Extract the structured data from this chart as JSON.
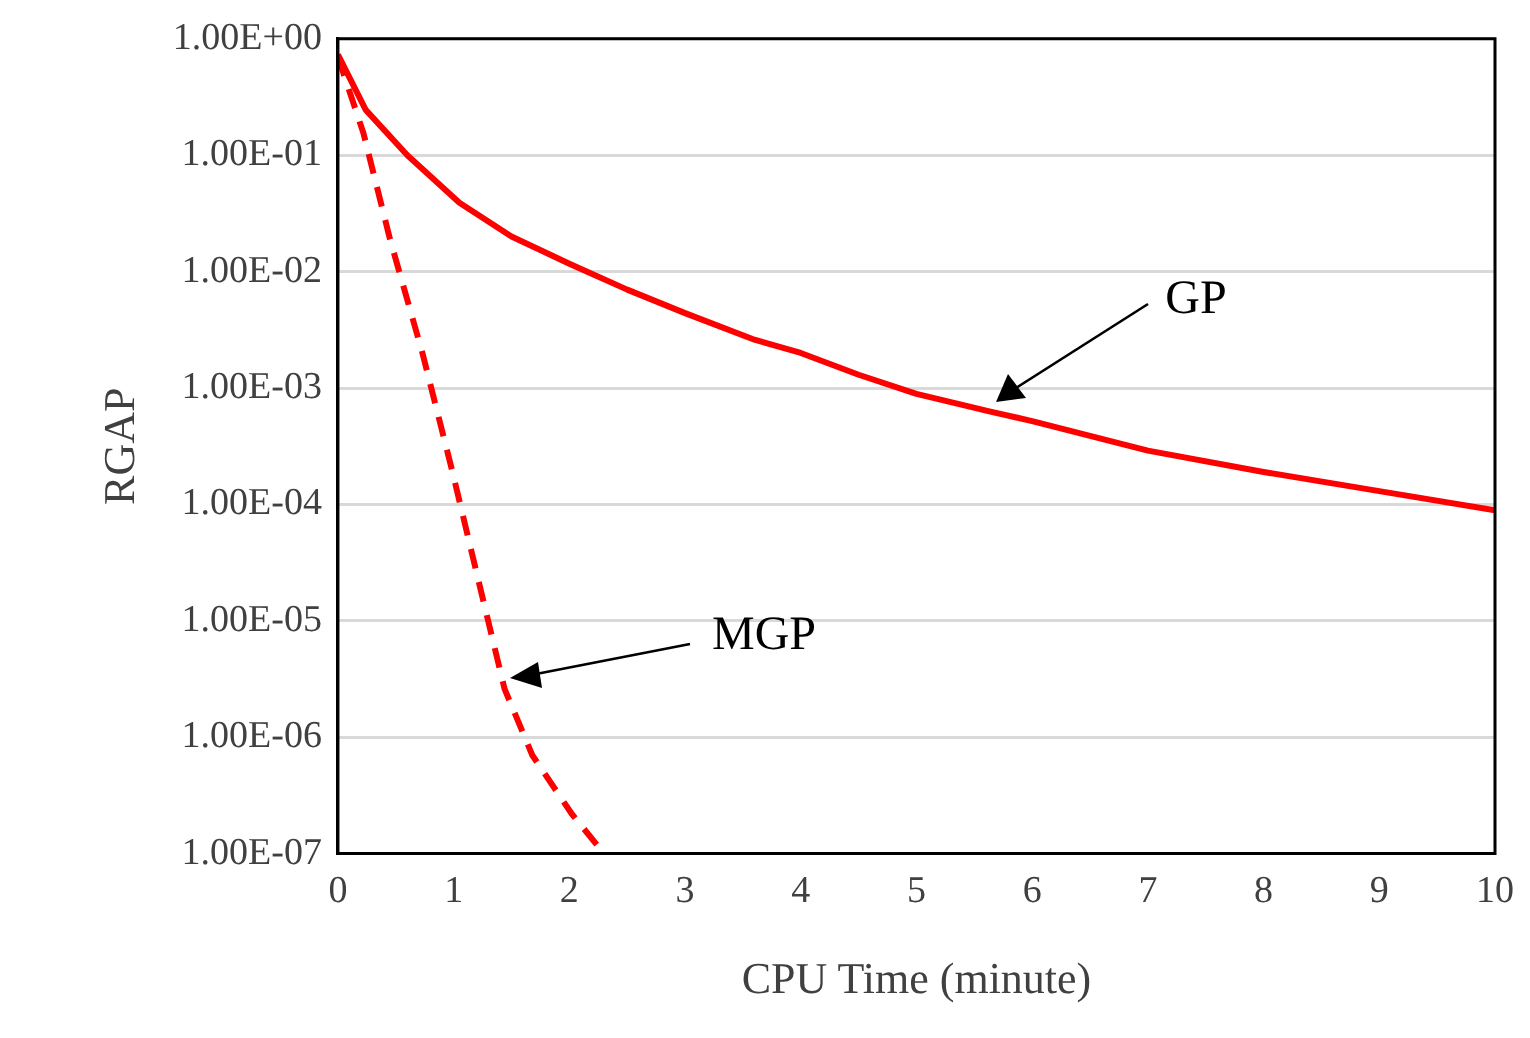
{
  "chart_data": {
    "type": "line",
    "xlabel": "CPU Time (minute)",
    "ylabel": "RGAP",
    "log": "y",
    "grid": "y",
    "legend": false,
    "marker": "none",
    "xlim": [
      0,
      10
    ],
    "xticks": [
      0,
      1,
      2,
      3,
      4,
      5,
      6,
      7,
      8,
      9,
      10
    ],
    "ylim": [
      1e-07,
      1
    ],
    "yticks": [
      {
        "value": 1,
        "label": "1.00E+00"
      },
      {
        "value": 0.1,
        "label": "1.00E-01"
      },
      {
        "value": 0.01,
        "label": "1.00E-02"
      },
      {
        "value": 0.001,
        "label": "1.00E-03"
      },
      {
        "value": 0.0001,
        "label": "1.00E-04"
      },
      {
        "value": 1e-05,
        "label": "1.00E-05"
      },
      {
        "value": 1e-06,
        "label": "1.00E-06"
      },
      {
        "value": 1e-07,
        "label": "1.00E-07"
      }
    ],
    "series": [
      {
        "color": "#ff0000",
        "line_style": "solid",
        "x": [
          0,
          0.24,
          0.6,
          1.05,
          1.5,
          2,
          2.5,
          3,
          3.6,
          4,
          4.5,
          5,
          5.63,
          6,
          7,
          8,
          9,
          10
        ],
        "values": [
          0.73,
          0.245,
          0.1,
          0.039,
          0.02,
          0.0117,
          0.007,
          0.0044,
          0.0026,
          0.002,
          0.0013,
          0.00089,
          0.00063,
          0.00052,
          0.00029,
          0.00019,
          0.00013,
          8.9e-05
        ]
      },
      {
        "color": "#ff0000",
        "line_style": "dashed",
        "x": [
          0,
          0.22,
          0.45,
          0.73,
          0.99,
          1.22,
          1.44,
          1.68,
          2.02,
          2.3
        ],
        "values": [
          0.7,
          0.155,
          0.019,
          0.002,
          0.00019,
          2.1e-05,
          2.6e-06,
          7e-07,
          2.2e-07,
          1e-07
        ]
      }
    ],
    "annotations": [
      "GP",
      "MGP"
    ]
  }
}
